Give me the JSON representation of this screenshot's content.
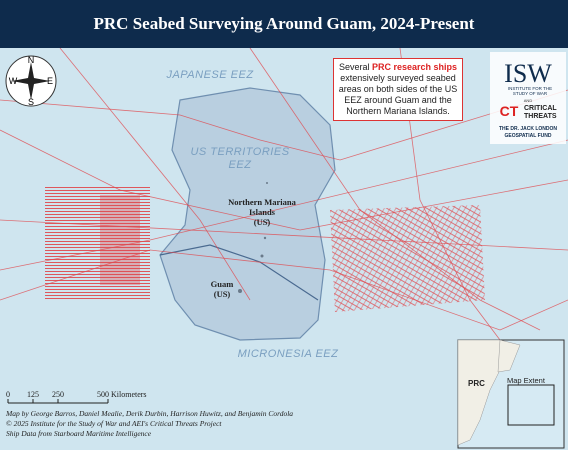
{
  "header": {
    "title": "PRC Seabed Surveying Around Guam, 2024-Present"
  },
  "compass": {
    "n": "N",
    "s": "S",
    "e": "E",
    "w": "W"
  },
  "zones": {
    "japan": "JAPANESE EEZ",
    "us_line1": "US TERRITORIES",
    "us_line2": "EEZ",
    "micronesia": "MICRONESIA EEZ"
  },
  "places": {
    "nmi_line1": "Northern Mariana",
    "nmi_line2": "Islands",
    "nmi_line3": "(US)",
    "guam_line1": "Guam",
    "guam_line2": "(US)"
  },
  "callout": {
    "before": "Several ",
    "highlight": "PRC research ships",
    "after": " extensively surveyed seabed areas on both sides of the US EEZ around Guam and the Northern Mariana Islands."
  },
  "logos": {
    "isw": "ISW",
    "isw_sub1": "INSTITUTE FOR THE",
    "isw_sub2": "STUDY OF WAR",
    "and": "AND",
    "ct": "CT",
    "ct_sub1": "CRITICAL",
    "ct_sub2": "THREATS",
    "fund1": "THE DR. JACK LONDON",
    "fund2": "GEOSPATIAL FUND"
  },
  "scale": {
    "zero": "0",
    "a": "125",
    "b": "250",
    "end": "500 Kilometers"
  },
  "credits": [
    "Map by George Barros, Daniel Mealie, Derik Durbin, Harrison Huwitz, and Benjamin Cordola",
    "© 2025 Institute for the Study of War and AEI's Critical Threats Project",
    "Ship Data from Starboard Maritime Intelligence"
  ],
  "inset": {
    "prc": "PRC",
    "extent": "Map Extent"
  }
}
